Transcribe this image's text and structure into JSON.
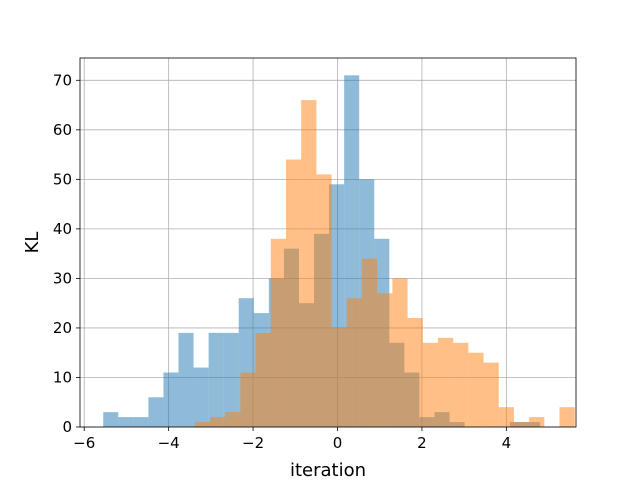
{
  "chart_data": {
    "type": "bar",
    "title": "",
    "xlabel": "iteration",
    "ylabel": "KL",
    "xlim": [
      -6.1,
      5.65
    ],
    "ylim": [
      0,
      74.5
    ],
    "xticks": [
      -6,
      -4,
      -2,
      0,
      2,
      4
    ],
    "xtick_labels": [
      "−6",
      "−4",
      "−2",
      "0",
      "2",
      "4"
    ],
    "yticks": [
      0,
      10,
      20,
      30,
      40,
      50,
      60,
      70
    ],
    "ytick_labels": [
      "0",
      "10",
      "20",
      "30",
      "40",
      "50",
      "60",
      "70"
    ],
    "grid": true,
    "legend": "none",
    "series": [
      {
        "color": "#1f77b4",
        "opacity": 0.5,
        "bin_start": -5.55,
        "bin_width": 0.3567,
        "values": [
          3,
          2,
          2,
          6,
          11,
          19,
          12,
          19,
          19,
          26,
          23,
          30,
          36,
          25,
          39,
          49,
          71,
          50,
          38,
          17,
          11,
          2,
          3,
          1,
          0,
          0,
          0,
          1,
          1,
          0
        ]
      },
      {
        "color": "#ff7f0e",
        "opacity": 0.5,
        "bin_start": -3.38,
        "bin_width": 0.36,
        "values": [
          1,
          2,
          3,
          11,
          19,
          38,
          54,
          66,
          51,
          20,
          26,
          34,
          27,
          30,
          22,
          17,
          18,
          17,
          15,
          13,
          4,
          1,
          2,
          0,
          4
        ]
      }
    ]
  }
}
